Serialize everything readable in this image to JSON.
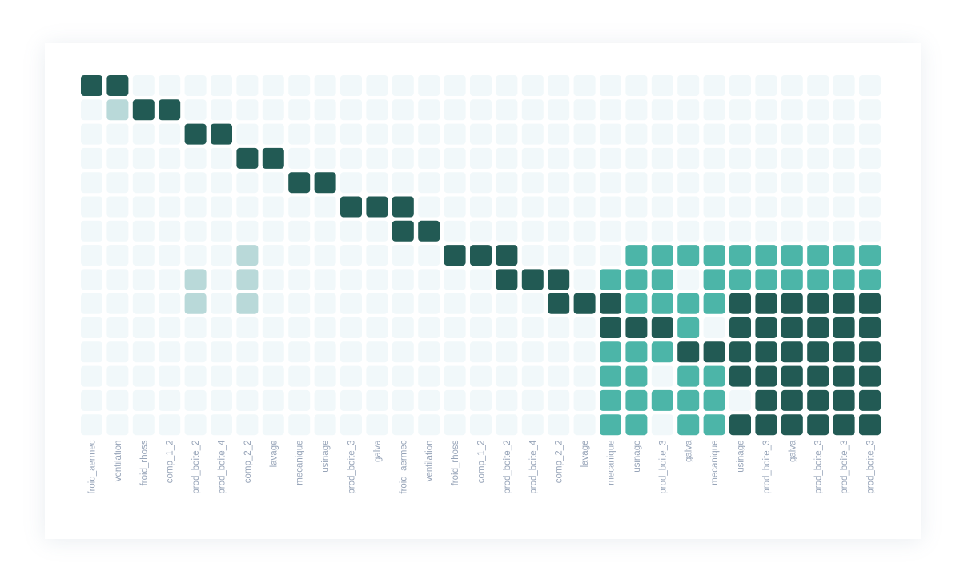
{
  "chart_data": {
    "type": "heatmap",
    "title": "",
    "xlabel": "",
    "ylabel": "",
    "x_categories": [
      "froid_aermec",
      "ventilation",
      "froid_rhoss",
      "comp_1_2",
      "prod_boite_2",
      "prod_boite_4",
      "comp_2_2",
      "lavage",
      "mecanique",
      "usinage",
      "prod_boite_3",
      "galva",
      "froid_aermec",
      "ventilation",
      "froid_rhoss",
      "comp_1_2",
      "prod_boite_2",
      "prod_boite_4",
      "comp_2_2",
      "lavage",
      "mecanique",
      "usinage",
      "prod_boite_3",
      "galva",
      "mecanique",
      "usinage",
      "prod_boite_3",
      "galva",
      "prod_boite_3",
      "prod_boite_3",
      "prod_boite_3"
    ],
    "value_levels": {
      "0": "empty",
      "1": "light",
      "2": "medium",
      "3": "dark"
    },
    "colors": {
      "0": "#f1f8fa",
      "1": "#b9d9d9",
      "2": "#4cb5a8",
      "3": "#225a54"
    },
    "matrix": [
      [
        3,
        3,
        0,
        0,
        0,
        0,
        0,
        0,
        0,
        0,
        0,
        0,
        0,
        0,
        0,
        0,
        0,
        0,
        0,
        0,
        0,
        0,
        0,
        0,
        0,
        0,
        0,
        0,
        0,
        0,
        0
      ],
      [
        0,
        1,
        3,
        3,
        0,
        0,
        0,
        0,
        0,
        0,
        0,
        0,
        0,
        0,
        0,
        0,
        0,
        0,
        0,
        0,
        0,
        0,
        0,
        0,
        0,
        0,
        0,
        0,
        0,
        0,
        0
      ],
      [
        0,
        0,
        0,
        0,
        3,
        3,
        0,
        0,
        0,
        0,
        0,
        0,
        0,
        0,
        0,
        0,
        0,
        0,
        0,
        0,
        0,
        0,
        0,
        0,
        0,
        0,
        0,
        0,
        0,
        0,
        0
      ],
      [
        0,
        0,
        0,
        0,
        0,
        0,
        3,
        3,
        0,
        0,
        0,
        0,
        0,
        0,
        0,
        0,
        0,
        0,
        0,
        0,
        0,
        0,
        0,
        0,
        0,
        0,
        0,
        0,
        0,
        0,
        0
      ],
      [
        0,
        0,
        0,
        0,
        0,
        0,
        0,
        0,
        3,
        3,
        0,
        0,
        0,
        0,
        0,
        0,
        0,
        0,
        0,
        0,
        0,
        0,
        0,
        0,
        0,
        0,
        0,
        0,
        0,
        0,
        0
      ],
      [
        0,
        0,
        0,
        0,
        0,
        0,
        0,
        0,
        0,
        0,
        3,
        3,
        3,
        0,
        0,
        0,
        0,
        0,
        0,
        0,
        0,
        0,
        0,
        0,
        0,
        0,
        0,
        0,
        0,
        0,
        0
      ],
      [
        0,
        0,
        0,
        0,
        0,
        0,
        0,
        0,
        0,
        0,
        0,
        0,
        3,
        3,
        0,
        0,
        0,
        0,
        0,
        0,
        0,
        0,
        0,
        0,
        0,
        0,
        0,
        0,
        0,
        0,
        0
      ],
      [
        0,
        0,
        0,
        0,
        0,
        0,
        1,
        0,
        0,
        0,
        0,
        0,
        0,
        0,
        3,
        3,
        3,
        0,
        0,
        0,
        0,
        2,
        2,
        2,
        2,
        2,
        2,
        2,
        2,
        2,
        2
      ],
      [
        0,
        0,
        0,
        0,
        1,
        0,
        1,
        0,
        0,
        0,
        0,
        0,
        0,
        0,
        0,
        0,
        3,
        3,
        3,
        0,
        2,
        2,
        2,
        0,
        2,
        2,
        2,
        2,
        2,
        2,
        2
      ],
      [
        0,
        0,
        0,
        0,
        1,
        0,
        1,
        0,
        0,
        0,
        0,
        0,
        0,
        0,
        0,
        0,
        0,
        0,
        3,
        3,
        3,
        2,
        2,
        2,
        2,
        3,
        3,
        3,
        3,
        3,
        3
      ],
      [
        0,
        0,
        0,
        0,
        0,
        0,
        0,
        0,
        0,
        0,
        0,
        0,
        0,
        0,
        0,
        0,
        0,
        0,
        0,
        0,
        3,
        3,
        3,
        2,
        0,
        3,
        3,
        3,
        3,
        3,
        3
      ],
      [
        0,
        0,
        0,
        0,
        0,
        0,
        0,
        0,
        0,
        0,
        0,
        0,
        0,
        0,
        0,
        0,
        0,
        0,
        0,
        0,
        2,
        2,
        2,
        3,
        3,
        3,
        3,
        3,
        3,
        3,
        3
      ],
      [
        0,
        0,
        0,
        0,
        0,
        0,
        0,
        0,
        0,
        0,
        0,
        0,
        0,
        0,
        0,
        0,
        0,
        0,
        0,
        0,
        2,
        2,
        0,
        2,
        2,
        3,
        3,
        3,
        3,
        3,
        3
      ],
      [
        0,
        0,
        0,
        0,
        0,
        0,
        0,
        0,
        0,
        0,
        0,
        0,
        0,
        0,
        0,
        0,
        0,
        0,
        0,
        0,
        2,
        2,
        2,
        2,
        2,
        0,
        3,
        3,
        3,
        3,
        3
      ],
      [
        0,
        0,
        0,
        0,
        0,
        0,
        0,
        0,
        0,
        0,
        0,
        0,
        0,
        0,
        0,
        0,
        0,
        0,
        0,
        0,
        2,
        2,
        0,
        2,
        2,
        3,
        3,
        3,
        3,
        3,
        3
      ]
    ],
    "grid": false,
    "legend": "none"
  }
}
